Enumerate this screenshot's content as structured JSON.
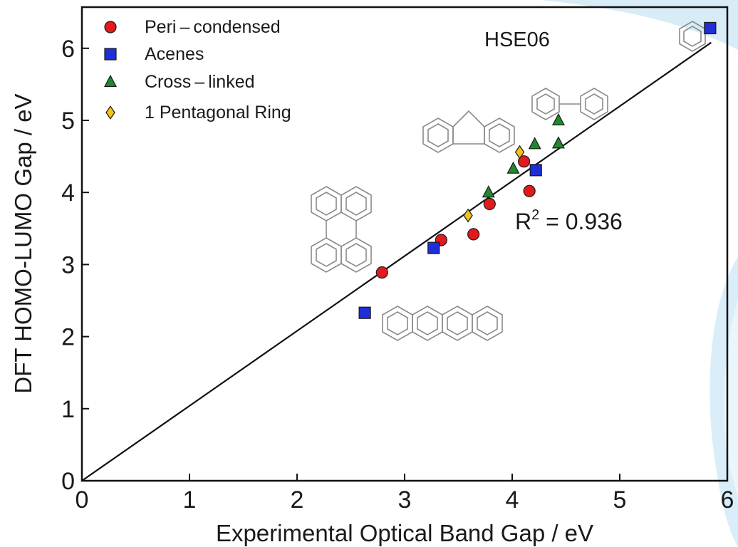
{
  "chart_data": {
    "type": "scatter",
    "xlabel": "Experimental Optical Band Gap / eV",
    "ylabel": "DFT HOMO-LUMO Gap / eV",
    "xlim": [
      0,
      6
    ],
    "ylim": [
      0,
      6.6
    ],
    "x_ticks": [
      0,
      1,
      2,
      3,
      4,
      5,
      6
    ],
    "y_ticks": [
      0,
      1,
      2,
      3,
      4,
      5,
      6
    ],
    "legend_position": "top-left",
    "method_label": "HSE06",
    "r2_base": "R",
    "r2_exp": "2",
    "r2_value": " = 0.936",
    "fit_line": {
      "x": [
        0,
        5.85
      ],
      "y": [
        0,
        6.08
      ]
    },
    "series": [
      {
        "name": "Peri – condensed",
        "marker": "circle",
        "color": "#e31a1c",
        "points": [
          [
            2.79,
            2.89
          ],
          [
            3.34,
            3.34
          ],
          [
            3.64,
            3.42
          ],
          [
            3.79,
            3.84
          ],
          [
            4.11,
            4.43
          ],
          [
            4.16,
            4.02
          ]
        ]
      },
      {
        "name": "Acenes",
        "marker": "square",
        "color": "#1f2ed6",
        "points": [
          [
            2.63,
            2.33
          ],
          [
            3.27,
            3.23
          ],
          [
            4.22,
            4.31
          ],
          [
            5.84,
            6.28
          ]
        ]
      },
      {
        "name": "Cross – linked",
        "marker": "triangle",
        "color": "#1f8a2c",
        "points": [
          [
            3.78,
            4.0
          ],
          [
            4.01,
            4.33
          ],
          [
            4.21,
            4.67
          ],
          [
            4.43,
            4.68
          ],
          [
            4.43,
            5.0
          ]
        ]
      },
      {
        "name": "1 Pentagonal Ring",
        "marker": "diamond",
        "color": "#f2c21b",
        "points": [
          [
            3.59,
            3.68
          ],
          [
            4.07,
            4.56
          ]
        ]
      }
    ]
  }
}
